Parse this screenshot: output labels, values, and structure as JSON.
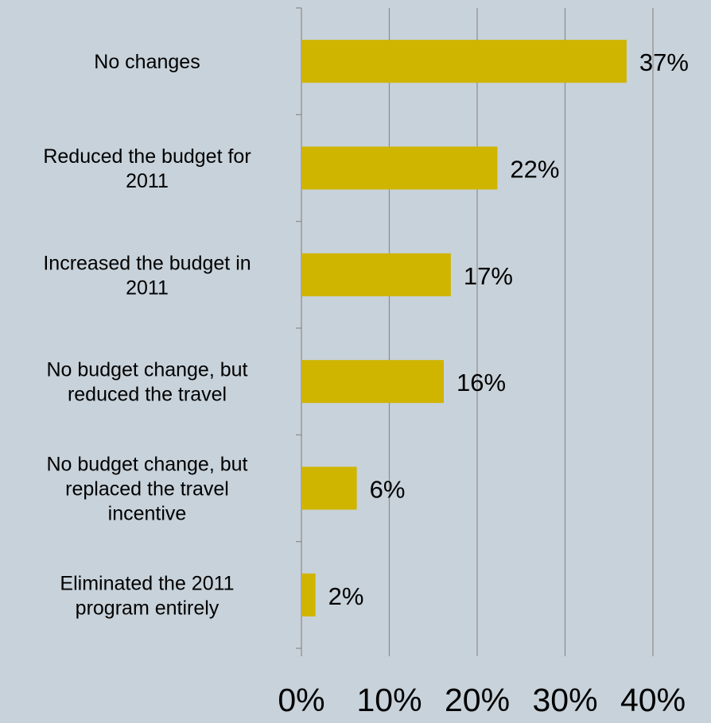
{
  "chart_data": {
    "type": "bar",
    "orientation": "horizontal",
    "title": "",
    "xlabel": "",
    "ylabel": "",
    "xlim": [
      0,
      40
    ],
    "grid": true,
    "legend": "none",
    "categories": [
      [
        "No changes"
      ],
      [
        "Reduced the budget for",
        "2011"
      ],
      [
        "Increased the budget in",
        "2011"
      ],
      [
        "No budget change, but",
        "reduced the travel"
      ],
      [
        "No budget change, but",
        "replaced the travel",
        "incentive"
      ],
      [
        "Eliminated the 2011",
        "program entirely"
      ]
    ],
    "values": [
      37,
      22.3,
      17,
      16.2,
      6.3,
      1.6
    ],
    "data_labels": [
      "37%",
      "22%",
      "17%",
      "16%",
      "6%",
      "2%"
    ],
    "x_ticks": [
      0,
      10,
      20,
      30,
      40
    ],
    "x_tick_labels": [
      "0%",
      "10%",
      "20%",
      "30%",
      "40%"
    ],
    "colors": {
      "background": "#c8d2da",
      "bar": "#cfb400",
      "gridline": "#8c8c8c",
      "text": "#000000"
    }
  }
}
